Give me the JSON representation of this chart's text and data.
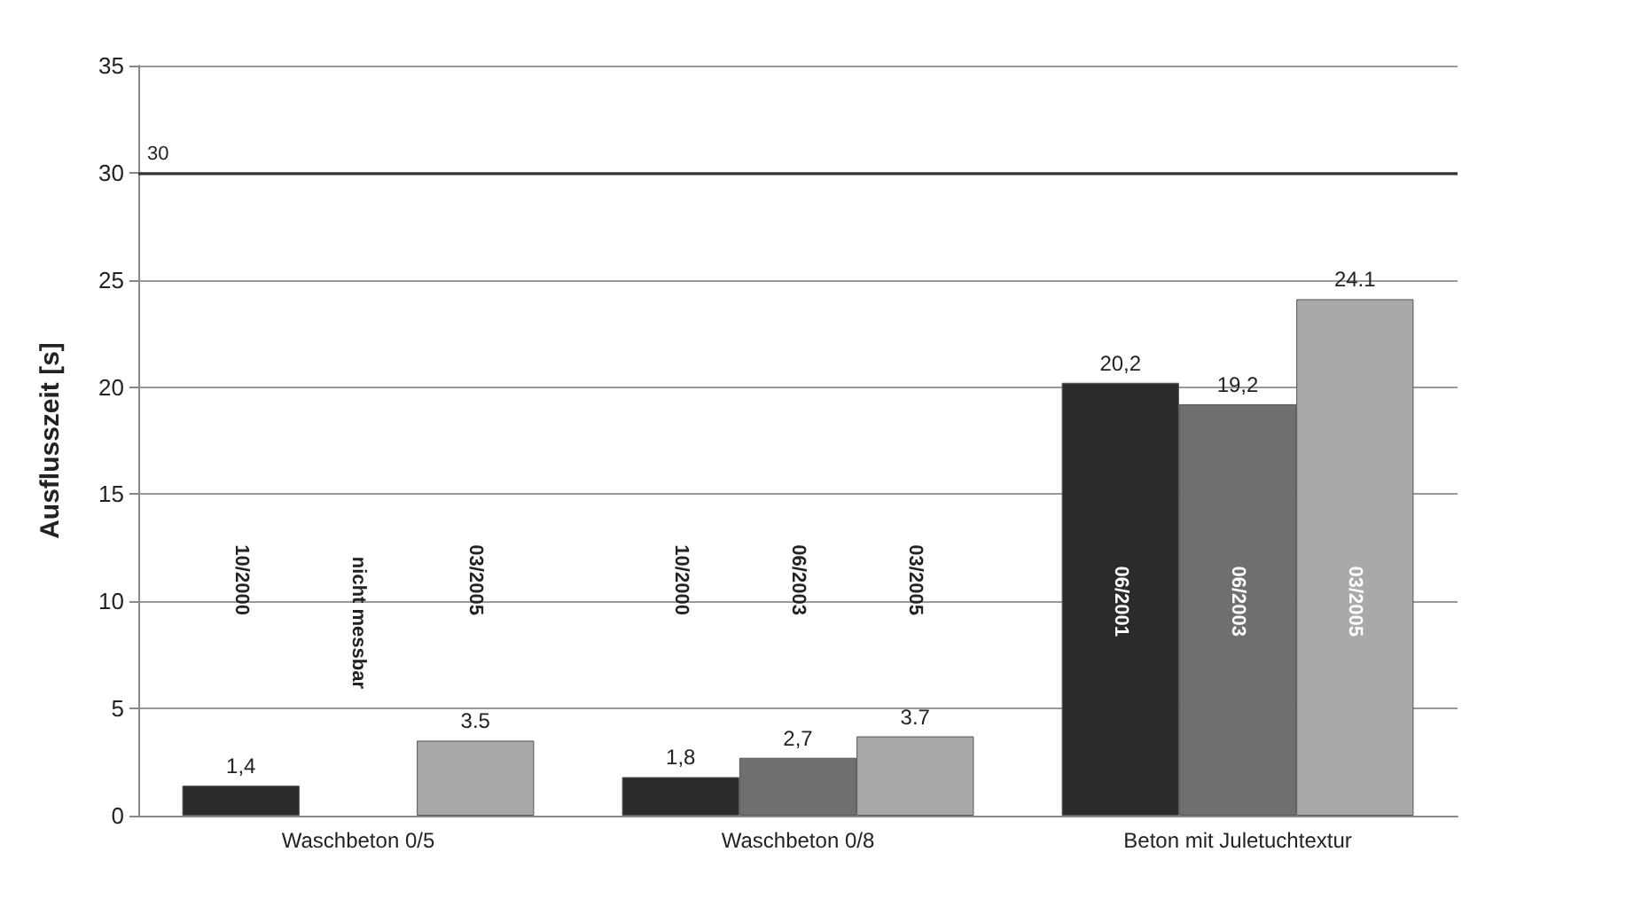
{
  "chart_data": {
    "type": "bar",
    "ylabel": "Ausflusszeit [s]",
    "categories": [
      "Waschbeton 0/5",
      "Waschbeton 0/8",
      "Beton mit Juletuchtextur"
    ],
    "series": [
      {
        "color": "#2b2b2b",
        "values": [
          1.4,
          1.8,
          20.2
        ],
        "value_labels": [
          "1,4",
          "1,8",
          "20,2"
        ]
      },
      {
        "color": "#6f6f6f",
        "values": [
          null,
          2.7,
          19.2
        ],
        "value_labels": [
          null,
          "2,7",
          "19,2"
        ]
      },
      {
        "color": "#a9a9a9",
        "values": [
          3.5,
          3.7,
          24.1
        ],
        "value_labels": [
          "3.5",
          "3.7",
          "24.1"
        ]
      }
    ],
    "ylim": [
      0,
      35
    ],
    "yticks": [
      0,
      5,
      10,
      15,
      20,
      25,
      30,
      35
    ],
    "grid": "y",
    "ref_lines": [
      {
        "axis": "y",
        "value": 30,
        "label": "30",
        "color": "#333333"
      }
    ],
    "annotations": [
      "10/2000",
      "nicht messbar",
      "03/2005",
      "10/2000",
      "06/2003",
      "03/2005",
      "06/2001",
      "06/2003",
      "03/2005"
    ]
  }
}
